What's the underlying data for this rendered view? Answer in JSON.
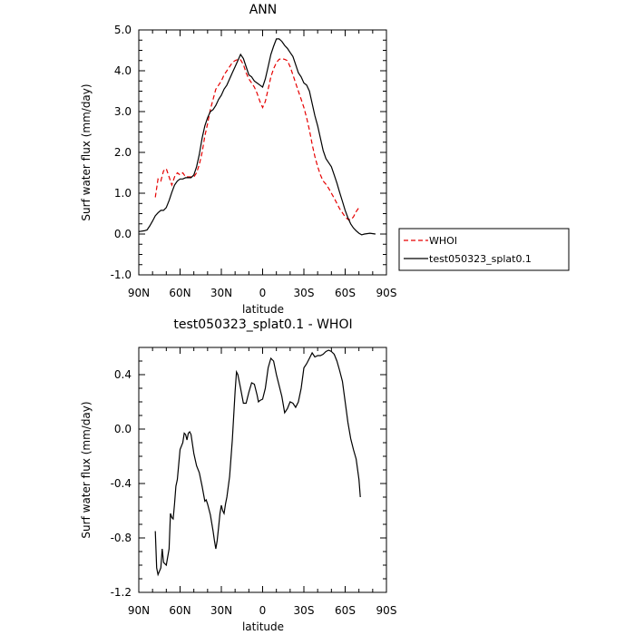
{
  "chart_data": [
    {
      "type": "line",
      "title": "ANN",
      "xlabel": "latitude",
      "ylabel": "Surf water flux (mm/day)",
      "xlim": [
        90,
        -90
      ],
      "ylim": [
        -1.0,
        5.0
      ],
      "x_ticks": [
        90,
        60,
        30,
        0,
        -30,
        -60,
        -90
      ],
      "x_tick_labels": [
        "90N",
        "60N",
        "30N",
        "0",
        "30S",
        "60S",
        "90S"
      ],
      "y_ticks": [
        -1.0,
        0.0,
        1.0,
        2.0,
        3.0,
        4.0,
        5.0
      ],
      "y_tick_labels": [
        "-1.0",
        "0.0",
        "1.0",
        "2.0",
        "3.0",
        "4.0",
        "5.0"
      ],
      "legend": "outside-right",
      "series": [
        {
          "name": "WHOI",
          "color": "#e60000",
          "dash": "dashed",
          "points": [
            [
              78,
              0.9
            ],
            [
              76,
              1.35
            ],
            [
              74,
              1.3
            ],
            [
              72,
              1.55
            ],
            [
              70,
              1.6
            ],
            [
              68,
              1.4
            ],
            [
              66,
              1.2
            ],
            [
              64,
              1.4
            ],
            [
              62,
              1.5
            ],
            [
              60,
              1.45
            ],
            [
              58,
              1.5
            ],
            [
              56,
              1.4
            ],
            [
              54,
              1.4
            ],
            [
              50,
              1.4
            ],
            [
              48,
              1.5
            ],
            [
              46,
              1.7
            ],
            [
              44,
              2.0
            ],
            [
              42,
              2.4
            ],
            [
              40,
              2.7
            ],
            [
              38,
              3.05
            ],
            [
              36,
              3.3
            ],
            [
              34,
              3.55
            ],
            [
              32,
              3.65
            ],
            [
              30,
              3.75
            ],
            [
              28,
              3.9
            ],
            [
              26,
              4.0
            ],
            [
              24,
              4.1
            ],
            [
              22,
              4.2
            ],
            [
              20,
              4.25
            ],
            [
              18,
              4.28
            ],
            [
              16,
              4.27
            ],
            [
              14,
              4.15
            ],
            [
              12,
              3.95
            ],
            [
              10,
              3.8
            ],
            [
              8,
              3.7
            ],
            [
              6,
              3.6
            ],
            [
              4,
              3.45
            ],
            [
              2,
              3.25
            ],
            [
              0,
              3.1
            ],
            [
              -2,
              3.25
            ],
            [
              -4,
              3.55
            ],
            [
              -6,
              3.85
            ],
            [
              -8,
              4.05
            ],
            [
              -10,
              4.2
            ],
            [
              -12,
              4.28
            ],
            [
              -14,
              4.3
            ],
            [
              -16,
              4.28
            ],
            [
              -18,
              4.25
            ],
            [
              -20,
              4.1
            ],
            [
              -22,
              3.9
            ],
            [
              -24,
              3.7
            ],
            [
              -26,
              3.5
            ],
            [
              -28,
              3.3
            ],
            [
              -30,
              3.1
            ],
            [
              -32,
              2.85
            ],
            [
              -34,
              2.55
            ],
            [
              -36,
              2.2
            ],
            [
              -38,
              1.9
            ],
            [
              -40,
              1.65
            ],
            [
              -42,
              1.45
            ],
            [
              -44,
              1.3
            ],
            [
              -46,
              1.22
            ],
            [
              -48,
              1.12
            ],
            [
              -50,
              1.0
            ],
            [
              -52,
              0.88
            ],
            [
              -54,
              0.75
            ],
            [
              -56,
              0.62
            ],
            [
              -58,
              0.52
            ],
            [
              -60,
              0.42
            ],
            [
              -62,
              0.36
            ],
            [
              -64,
              0.35
            ],
            [
              -66,
              0.42
            ],
            [
              -68,
              0.55
            ],
            [
              -70,
              0.65
            ]
          ]
        },
        {
          "name": "test050323_splat0.1",
          "color": "#000000",
          "dash": "solid",
          "points": [
            [
              90,
              0.06
            ],
            [
              86,
              0.08
            ],
            [
              84,
              0.1
            ],
            [
              82,
              0.2
            ],
            [
              80,
              0.32
            ],
            [
              78,
              0.45
            ],
            [
              76,
              0.52
            ],
            [
              74,
              0.58
            ],
            [
              72,
              0.58
            ],
            [
              70,
              0.65
            ],
            [
              68,
              0.82
            ],
            [
              66,
              1.02
            ],
            [
              64,
              1.2
            ],
            [
              62,
              1.3
            ],
            [
              60,
              1.35
            ],
            [
              58,
              1.35
            ],
            [
              56,
              1.38
            ],
            [
              54,
              1.38
            ],
            [
              52,
              1.38
            ],
            [
              50,
              1.45
            ],
            [
              48,
              1.65
            ],
            [
              46,
              1.95
            ],
            [
              44,
              2.35
            ],
            [
              42,
              2.65
            ],
            [
              40,
              2.85
            ],
            [
              38,
              3.0
            ],
            [
              36,
              3.05
            ],
            [
              34,
              3.15
            ],
            [
              32,
              3.3
            ],
            [
              30,
              3.4
            ],
            [
              28,
              3.55
            ],
            [
              26,
              3.65
            ],
            [
              24,
              3.8
            ],
            [
              22,
              3.95
            ],
            [
              20,
              4.1
            ],
            [
              18,
              4.25
            ],
            [
              16,
              4.4
            ],
            [
              14,
              4.3
            ],
            [
              12,
              4.1
            ],
            [
              10,
              3.9
            ],
            [
              8,
              3.85
            ],
            [
              6,
              3.75
            ],
            [
              4,
              3.7
            ],
            [
              2,
              3.65
            ],
            [
              0,
              3.6
            ],
            [
              -2,
              3.8
            ],
            [
              -4,
              4.1
            ],
            [
              -6,
              4.4
            ],
            [
              -8,
              4.6
            ],
            [
              -10,
              4.78
            ],
            [
              -12,
              4.78
            ],
            [
              -14,
              4.72
            ],
            [
              -16,
              4.62
            ],
            [
              -18,
              4.55
            ],
            [
              -20,
              4.45
            ],
            [
              -22,
              4.35
            ],
            [
              -24,
              4.15
            ],
            [
              -26,
              3.95
            ],
            [
              -28,
              3.85
            ],
            [
              -30,
              3.7
            ],
            [
              -32,
              3.65
            ],
            [
              -34,
              3.5
            ],
            [
              -36,
              3.2
            ],
            [
              -38,
              2.9
            ],
            [
              -40,
              2.65
            ],
            [
              -42,
              2.35
            ],
            [
              -44,
              2.05
            ],
            [
              -46,
              1.85
            ],
            [
              -48,
              1.75
            ],
            [
              -50,
              1.65
            ],
            [
              -52,
              1.45
            ],
            [
              -54,
              1.25
            ],
            [
              -56,
              1.02
            ],
            [
              -58,
              0.8
            ],
            [
              -60,
              0.58
            ],
            [
              -62,
              0.4
            ],
            [
              -64,
              0.25
            ],
            [
              -66,
              0.15
            ],
            [
              -68,
              0.08
            ],
            [
              -70,
              0.02
            ],
            [
              -72,
              -0.02
            ],
            [
              -74,
              0.0
            ],
            [
              -78,
              0.02
            ],
            [
              -82,
              0.0
            ]
          ]
        }
      ]
    },
    {
      "type": "line",
      "title": "test050323_splat0.1 - WHOI",
      "xlabel": "latitude",
      "ylabel": "Surf water flux (mm/day)",
      "xlim": [
        90,
        -90
      ],
      "ylim": [
        -1.2,
        0.6
      ],
      "x_ticks": [
        90,
        60,
        30,
        0,
        -30,
        -60,
        -90
      ],
      "x_tick_labels": [
        "90N",
        "60N",
        "30N",
        "0",
        "30S",
        "60S",
        "90S"
      ],
      "y_ticks": [
        -1.2,
        -0.8,
        -0.4,
        0.0,
        0.4
      ],
      "y_tick_labels": [
        "-1.2",
        "-0.8",
        "-0.4",
        "0.0",
        "0.4"
      ],
      "series": [
        {
          "color": "#000000",
          "dash": "solid",
          "points": [
            [
              78,
              -0.75
            ],
            [
              77,
              -1.02
            ],
            [
              76,
              -1.07
            ],
            [
              74,
              -1.02
            ],
            [
              73,
              -0.88
            ],
            [
              72,
              -0.98
            ],
            [
              70,
              -1.0
            ],
            [
              68,
              -0.88
            ],
            [
              67,
              -0.62
            ],
            [
              66,
              -0.65
            ],
            [
              65,
              -0.66
            ],
            [
              64,
              -0.55
            ],
            [
              63,
              -0.42
            ],
            [
              62,
              -0.37
            ],
            [
              60,
              -0.15
            ],
            [
              58,
              -0.1
            ],
            [
              57,
              -0.03
            ],
            [
              56,
              -0.04
            ],
            [
              55,
              -0.08
            ],
            [
              54,
              -0.03
            ],
            [
              53,
              -0.02
            ],
            [
              52,
              -0.04
            ],
            [
              50,
              -0.18
            ],
            [
              48,
              -0.27
            ],
            [
              46,
              -0.32
            ],
            [
              44,
              -0.42
            ],
            [
              42,
              -0.53
            ],
            [
              41,
              -0.52
            ],
            [
              40,
              -0.55
            ],
            [
              38,
              -0.63
            ],
            [
              36,
              -0.75
            ],
            [
              35,
              -0.82
            ],
            [
              34,
              -0.88
            ],
            [
              33,
              -0.82
            ],
            [
              32,
              -0.72
            ],
            [
              31,
              -0.62
            ],
            [
              30,
              -0.56
            ],
            [
              29,
              -0.6
            ],
            [
              28,
              -0.62
            ],
            [
              27,
              -0.55
            ],
            [
              26,
              -0.5
            ],
            [
              24,
              -0.35
            ],
            [
              22,
              -0.08
            ],
            [
              20,
              0.28
            ],
            [
              19,
              0.42
            ],
            [
              18,
              0.4
            ],
            [
              17,
              0.35
            ],
            [
              16,
              0.3
            ],
            [
              14,
              0.19
            ],
            [
              12,
              0.19
            ],
            [
              10,
              0.27
            ],
            [
              8,
              0.34
            ],
            [
              6,
              0.33
            ],
            [
              4,
              0.25
            ],
            [
              3,
              0.2
            ],
            [
              2,
              0.21
            ],
            [
              0,
              0.22
            ],
            [
              -2,
              0.3
            ],
            [
              -4,
              0.45
            ],
            [
              -6,
              0.52
            ],
            [
              -8,
              0.5
            ],
            [
              -10,
              0.4
            ],
            [
              -12,
              0.32
            ],
            [
              -14,
              0.24
            ],
            [
              -16,
              0.12
            ],
            [
              -18,
              0.15
            ],
            [
              -20,
              0.2
            ],
            [
              -22,
              0.19
            ],
            [
              -24,
              0.16
            ],
            [
              -26,
              0.2
            ],
            [
              -28,
              0.3
            ],
            [
              -30,
              0.45
            ],
            [
              -32,
              0.48
            ],
            [
              -34,
              0.52
            ],
            [
              -36,
              0.56
            ],
            [
              -38,
              0.53
            ],
            [
              -40,
              0.54
            ],
            [
              -42,
              0.54
            ],
            [
              -44,
              0.55
            ],
            [
              -46,
              0.57
            ],
            [
              -48,
              0.58
            ],
            [
              -50,
              0.57
            ],
            [
              -52,
              0.55
            ],
            [
              -54,
              0.5
            ],
            [
              -56,
              0.43
            ],
            [
              -58,
              0.35
            ],
            [
              -60,
              0.2
            ],
            [
              -62,
              0.05
            ],
            [
              -64,
              -0.07
            ],
            [
              -66,
              -0.15
            ],
            [
              -68,
              -0.22
            ],
            [
              -70,
              -0.37
            ],
            [
              -71,
              -0.5
            ]
          ]
        }
      ]
    }
  ]
}
